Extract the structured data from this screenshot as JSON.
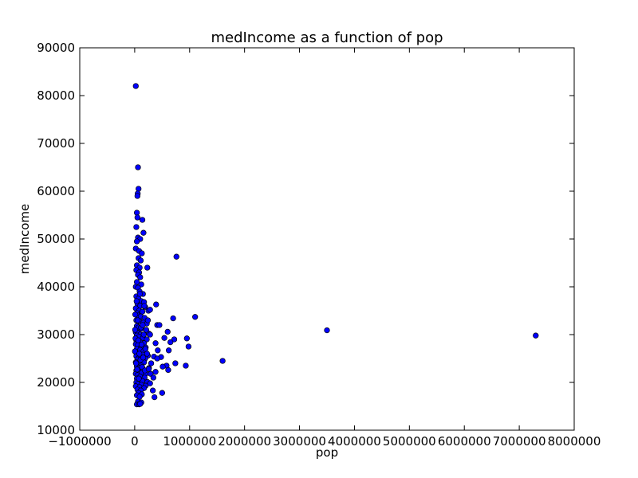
{
  "chart_data": {
    "type": "scatter",
    "title": "medIncome as a function of pop",
    "xlabel": "pop",
    "ylabel": "medIncome",
    "xlim": [
      -1000000,
      8000000
    ],
    "ylim": [
      10000,
      90000
    ],
    "xticks": [
      -1000000,
      0,
      1000000,
      2000000,
      3000000,
      4000000,
      5000000,
      6000000,
      7000000,
      8000000
    ],
    "xtick_labels": [
      "−1000000",
      "0",
      "1000000",
      "2000000",
      "3000000",
      "4000000",
      "5000000",
      "6000000",
      "7000000",
      "8000000"
    ],
    "yticks": [
      10000,
      20000,
      30000,
      40000,
      50000,
      60000,
      70000,
      80000,
      90000
    ],
    "ytick_labels": [
      "10000",
      "20000",
      "30000",
      "40000",
      "50000",
      "60000",
      "70000",
      "80000",
      "90000"
    ],
    "grid": false,
    "legend": "none",
    "marker_color": "#0000ff",
    "marker_edge_color": "#000000",
    "points": [
      [
        20000,
        82000
      ],
      [
        60000,
        65000
      ],
      [
        70000,
        60500
      ],
      [
        55000,
        59500
      ],
      [
        50000,
        59000
      ],
      [
        40000,
        55500
      ],
      [
        50000,
        54500
      ],
      [
        140000,
        54000
      ],
      [
        30000,
        52500
      ],
      [
        160000,
        51300
      ],
      [
        60000,
        50300
      ],
      [
        100000,
        50000
      ],
      [
        40000,
        49500
      ],
      [
        20000,
        48000
      ],
      [
        80000,
        47500
      ],
      [
        130000,
        47000
      ],
      [
        760000,
        46300
      ],
      [
        70000,
        46000
      ],
      [
        110000,
        45500
      ],
      [
        40000,
        44500
      ],
      [
        90000,
        44000
      ],
      [
        230000,
        44000
      ],
      [
        30000,
        43500
      ],
      [
        80000,
        43000
      ],
      [
        60000,
        42500
      ],
      [
        100000,
        42000
      ],
      [
        40000,
        41000
      ],
      [
        120000,
        40500
      ],
      [
        20000,
        40000
      ],
      [
        60000,
        39800
      ],
      [
        90000,
        39000
      ],
      [
        150000,
        38500
      ],
      [
        30000,
        38000
      ],
      [
        70000,
        37500
      ],
      [
        120000,
        37000
      ],
      [
        170000,
        36800
      ],
      [
        50000,
        36500
      ],
      [
        100000,
        36000
      ],
      [
        190000,
        35800
      ],
      [
        390000,
        36300
      ],
      [
        20000,
        35500
      ],
      [
        80000,
        35000
      ],
      [
        140000,
        34800
      ],
      [
        250000,
        35000
      ],
      [
        280000,
        35200
      ],
      [
        40000,
        34500
      ],
      [
        60000,
        34000
      ],
      [
        110000,
        33800
      ],
      [
        180000,
        33500
      ],
      [
        700000,
        33400
      ],
      [
        1100000,
        33700
      ],
      [
        30000,
        33000
      ],
      [
        90000,
        32800
      ],
      [
        160000,
        32500
      ],
      [
        220000,
        32300
      ],
      [
        410000,
        32000
      ],
      [
        450000,
        32000
      ],
      [
        40000,
        31800
      ],
      [
        70000,
        31500
      ],
      [
        120000,
        31200
      ],
      [
        3500000,
        30900
      ],
      [
        600000,
        30600
      ],
      [
        20000,
        30500
      ],
      [
        60000,
        30300
      ],
      [
        100000,
        30000
      ],
      [
        260000,
        30200
      ],
      [
        280000,
        30000
      ],
      [
        40000,
        29800
      ],
      [
        80000,
        29500
      ],
      [
        150000,
        29300
      ],
      [
        220000,
        29000
      ],
      [
        540000,
        29300
      ],
      [
        720000,
        29000
      ],
      [
        950000,
        29200
      ],
      [
        7300000,
        29800
      ],
      [
        30000,
        28800
      ],
      [
        90000,
        28500
      ],
      [
        170000,
        28200
      ],
      [
        380000,
        28200
      ],
      [
        650000,
        28400
      ],
      [
        20000,
        28000
      ],
      [
        60000,
        27800
      ],
      [
        120000,
        27500
      ],
      [
        200000,
        27300
      ],
      [
        980000,
        27500
      ],
      [
        40000,
        27000
      ],
      [
        100000,
        26800
      ],
      [
        160000,
        26500
      ],
      [
        420000,
        26700
      ],
      [
        620000,
        26700
      ],
      [
        20000,
        26300
      ],
      [
        70000,
        26000
      ],
      [
        140000,
        25800
      ],
      [
        240000,
        25600
      ],
      [
        480000,
        25300
      ],
      [
        30000,
        25500
      ],
      [
        80000,
        25200
      ],
      [
        190000,
        25000
      ],
      [
        350000,
        25400
      ],
      [
        410000,
        25000
      ],
      [
        1600000,
        24500
      ],
      [
        50000,
        24800
      ],
      [
        110000,
        24500
      ],
      [
        170000,
        24200
      ],
      [
        300000,
        24000
      ],
      [
        740000,
        24000
      ],
      [
        20000,
        24200
      ],
      [
        60000,
        23900
      ],
      [
        120000,
        23500
      ],
      [
        580000,
        23500
      ],
      [
        930000,
        23500
      ],
      [
        510000,
        23300
      ],
      [
        40000,
        23300
      ],
      [
        90000,
        23000
      ],
      [
        150000,
        22800
      ],
      [
        260000,
        23000
      ],
      [
        380000,
        22200
      ],
      [
        610000,
        22600
      ],
      [
        30000,
        22500
      ],
      [
        70000,
        22200
      ],
      [
        130000,
        22000
      ],
      [
        200000,
        21800
      ],
      [
        290000,
        21800
      ],
      [
        20000,
        21800
      ],
      [
        50000,
        21500
      ],
      [
        100000,
        21200
      ],
      [
        180000,
        21000
      ],
      [
        340000,
        21000
      ],
      [
        40000,
        20800
      ],
      [
        80000,
        20500
      ],
      [
        140000,
        20300
      ],
      [
        230000,
        20100
      ],
      [
        280000,
        19800
      ],
      [
        30000,
        20000
      ],
      [
        60000,
        19700
      ],
      [
        120000,
        19500
      ],
      [
        200000,
        19300
      ],
      [
        20000,
        19200
      ],
      [
        90000,
        19000
      ],
      [
        170000,
        18800
      ],
      [
        330000,
        18300
      ],
      [
        50000,
        18500
      ],
      [
        110000,
        18300
      ],
      [
        70000,
        17800
      ],
      [
        130000,
        17500
      ],
      [
        500000,
        17800
      ],
      [
        40000,
        17300
      ],
      [
        90000,
        17000
      ],
      [
        360000,
        16900
      ],
      [
        60000,
        16000
      ],
      [
        120000,
        15800
      ],
      [
        40000,
        15400
      ],
      [
        80000,
        15400
      ],
      [
        100000,
        15500
      ],
      [
        10000,
        34200
      ],
      [
        5000,
        26500
      ],
      [
        8000,
        31000
      ],
      [
        15000,
        29200
      ],
      [
        25000,
        24000
      ],
      [
        35000,
        37000
      ],
      [
        45000,
        22700
      ],
      [
        55000,
        33000
      ],
      [
        65000,
        28800
      ],
      [
        75000,
        20800
      ],
      [
        85000,
        26000
      ],
      [
        95000,
        38500
      ],
      [
        105000,
        24700
      ],
      [
        115000,
        31500
      ],
      [
        125000,
        27900
      ],
      [
        135000,
        23200
      ],
      [
        145000,
        32000
      ],
      [
        155000,
        25200
      ],
      [
        165000,
        30000
      ],
      [
        175000,
        36000
      ],
      [
        185000,
        22500
      ],
      [
        195000,
        27000
      ],
      [
        210000,
        31000
      ],
      [
        225000,
        26000
      ],
      [
        240000,
        33000
      ],
      [
        255000,
        22800
      ]
    ]
  }
}
